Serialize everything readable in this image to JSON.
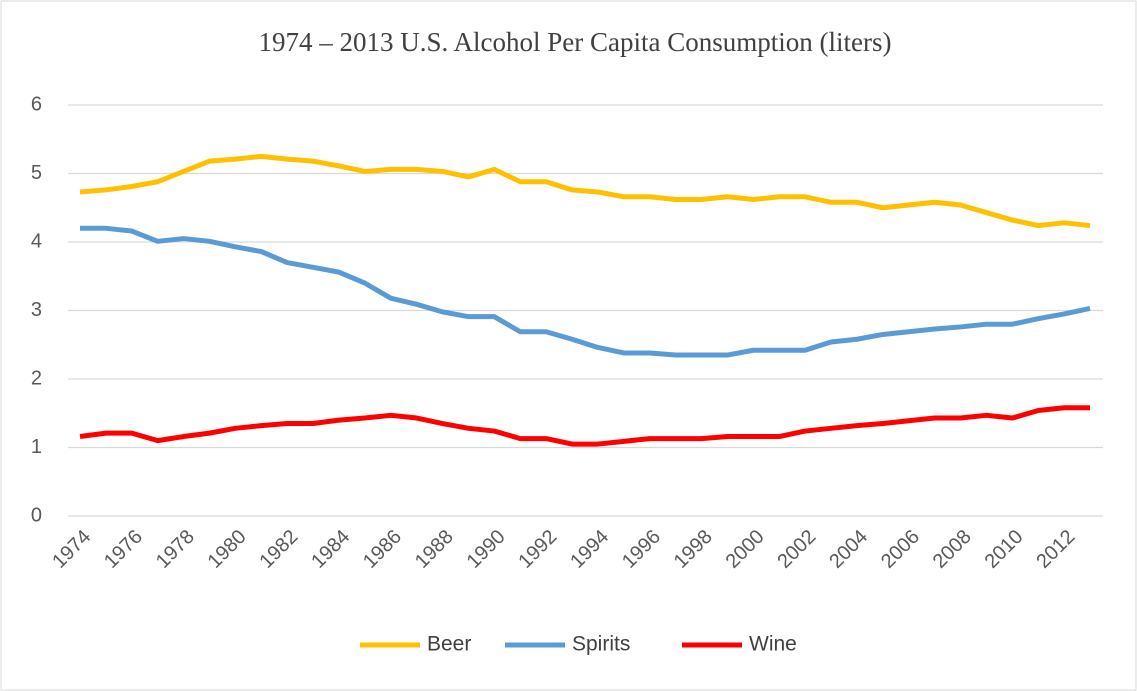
{
  "chart_data": {
    "type": "line",
    "title": "1974 – 2013 U.S. Alcohol Per Capita Consumption (liters)",
    "x": [
      1974,
      1975,
      1976,
      1977,
      1978,
      1979,
      1980,
      1981,
      1982,
      1983,
      1984,
      1985,
      1986,
      1987,
      1988,
      1989,
      1990,
      1991,
      1992,
      1993,
      1994,
      1995,
      1996,
      1997,
      1998,
      1999,
      2000,
      2001,
      2002,
      2003,
      2004,
      2005,
      2006,
      2007,
      2008,
      2009,
      2010,
      2011,
      2012,
      2013
    ],
    "series": [
      {
        "name": "Beer",
        "color": "#ffc000",
        "values": [
          4.73,
          4.76,
          4.81,
          4.88,
          5.03,
          5.18,
          5.21,
          5.25,
          5.21,
          5.18,
          5.11,
          5.03,
          5.06,
          5.06,
          5.03,
          4.95,
          5.06,
          4.88,
          4.88,
          4.76,
          4.73,
          4.66,
          4.66,
          4.62,
          4.62,
          4.66,
          4.62,
          4.66,
          4.66,
          4.58,
          4.58,
          4.5,
          4.54,
          4.58,
          4.54,
          4.43,
          4.32,
          4.24,
          4.28,
          4.24
        ]
      },
      {
        "name": "Spirits",
        "color": "#5b9bd5",
        "values": [
          4.2,
          4.2,
          4.16,
          4.01,
          4.05,
          4.01,
          3.93,
          3.86,
          3.7,
          3.63,
          3.56,
          3.4,
          3.18,
          3.09,
          2.98,
          2.91,
          2.91,
          2.69,
          2.69,
          2.58,
          2.46,
          2.38,
          2.38,
          2.35,
          2.35,
          2.35,
          2.42,
          2.42,
          2.42,
          2.54,
          2.58,
          2.65,
          2.69,
          2.73,
          2.76,
          2.8,
          2.8,
          2.88,
          2.95,
          3.03
        ]
      },
      {
        "name": "Wine",
        "color": "#ff0000",
        "values": [
          1.16,
          1.21,
          1.21,
          1.1,
          1.16,
          1.21,
          1.28,
          1.32,
          1.35,
          1.35,
          1.4,
          1.43,
          1.47,
          1.43,
          1.35,
          1.28,
          1.24,
          1.13,
          1.13,
          1.05,
          1.05,
          1.09,
          1.13,
          1.13,
          1.13,
          1.16,
          1.16,
          1.16,
          1.24,
          1.28,
          1.32,
          1.35,
          1.39,
          1.43,
          1.43,
          1.47,
          1.43,
          1.54,
          1.58,
          1.58
        ]
      }
    ],
    "xlim": [
      1974,
      2013
    ],
    "xticks": [
      1974,
      1976,
      1978,
      1980,
      1982,
      1984,
      1986,
      1988,
      1990,
      1992,
      1994,
      1996,
      1998,
      2000,
      2002,
      2004,
      2006,
      2008,
      2010,
      2012
    ],
    "ylim": [
      0,
      6
    ],
    "yticks": [
      0,
      1,
      2,
      3,
      4,
      5,
      6
    ],
    "grid": true,
    "legend": "bottom"
  }
}
